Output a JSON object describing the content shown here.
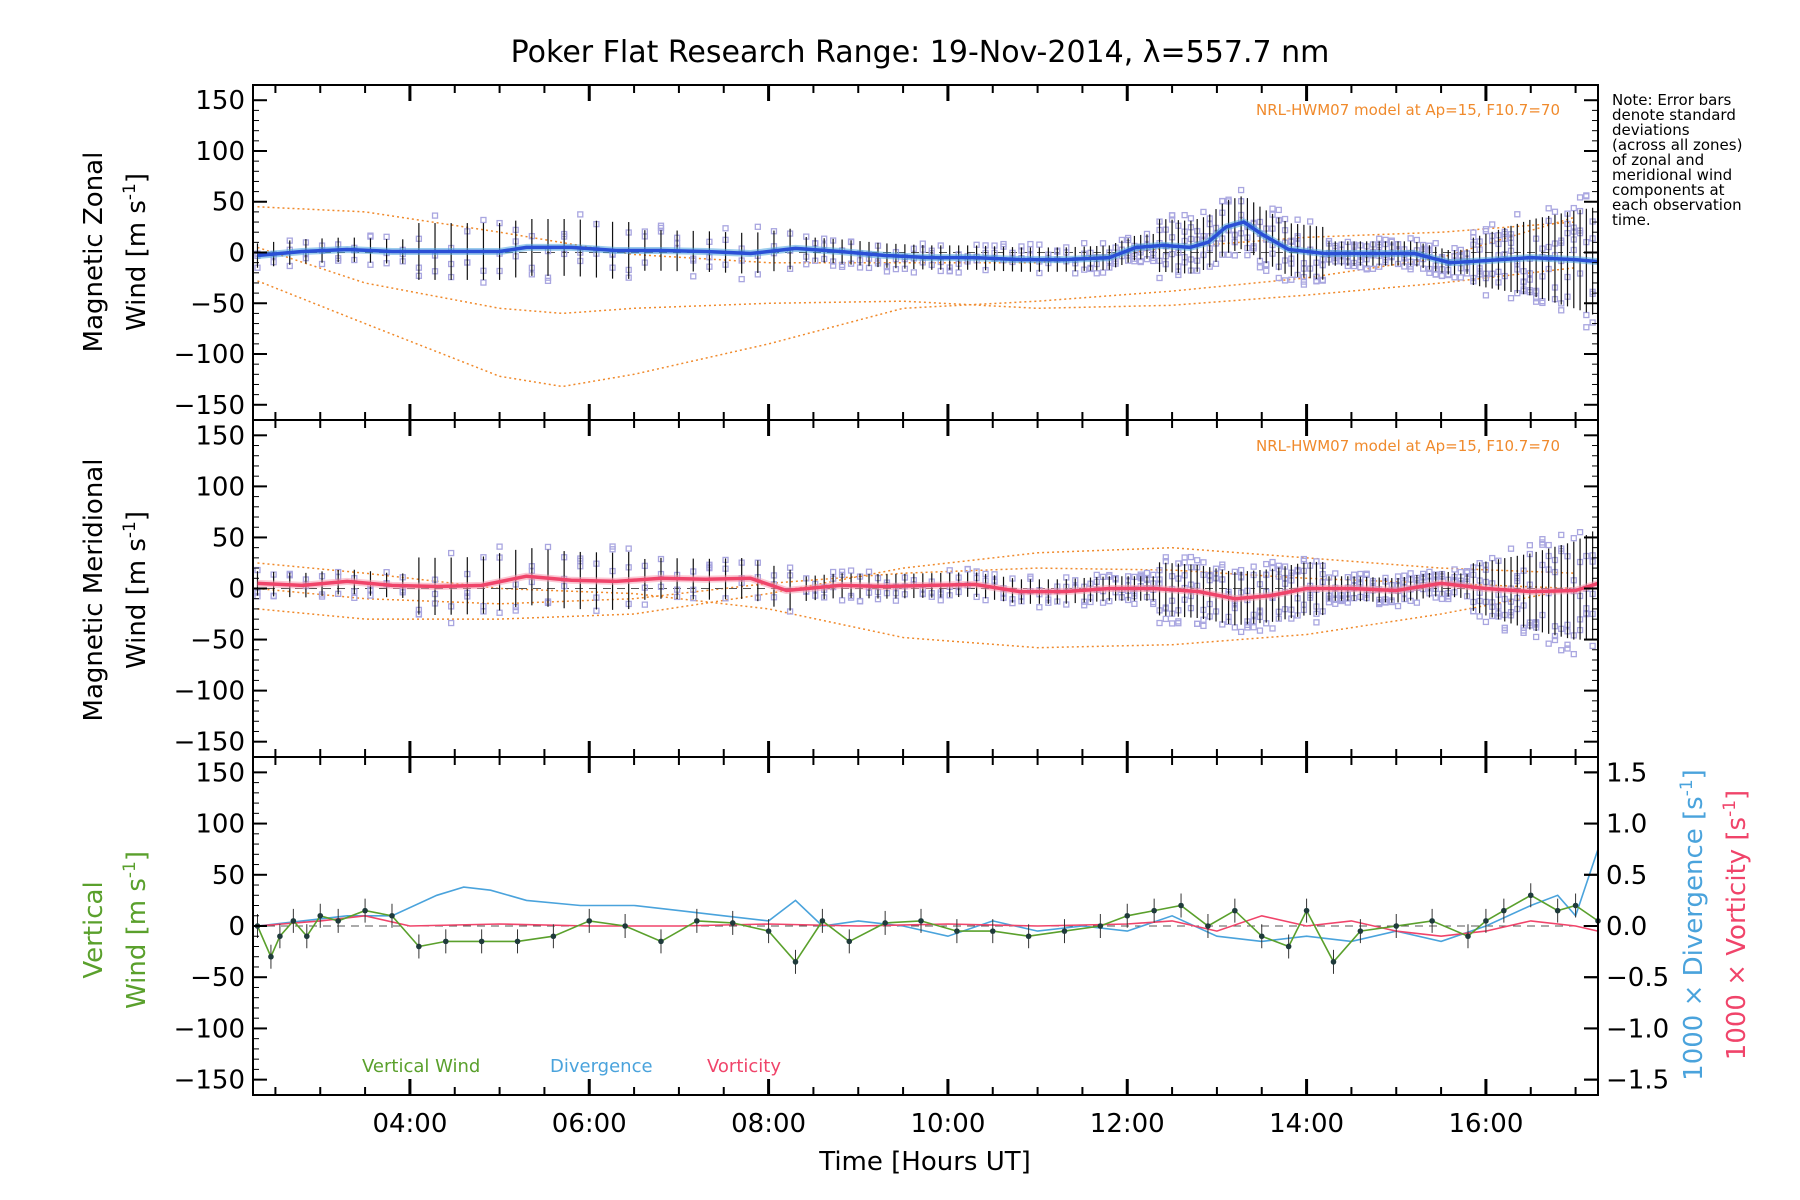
{
  "title": "Poker Flat Research Range: 19-Nov-2014, λ=557.7 nm",
  "note_lines": [
    "Note: Error bars",
    "denote standard",
    "deviations",
    "(across all zones)",
    "of zonal and",
    "meridional wind",
    "components at",
    "each observation",
    "time."
  ],
  "model_note": "NRL-HWM07 model at Ap=15, F10.7=70",
  "xlabel": "Time [Hours UT]",
  "x_ticks": [
    "04:00",
    "06:00",
    "08:00",
    "10:00",
    "12:00",
    "14:00",
    "16:00"
  ],
  "y_ticks": [
    "150",
    "100",
    "50",
    "0",
    "−50",
    "−100",
    "−150"
  ],
  "y2_ticks": [
    "1.5",
    "1.0",
    "0.5",
    "0.0",
    "−0.5",
    "−1.0",
    "−1.5"
  ],
  "panels": {
    "zonal": {
      "ylabel_1": "Magnetic Zonal",
      "ylabel_2": "Wind",
      "unit_pre": "[m s",
      "unit_exp": "-1",
      "unit_post": "]"
    },
    "meridional": {
      "ylabel_1": "Magnetic Meridional",
      "ylabel_2": "Wind",
      "unit_pre": "[m s",
      "unit_exp": "-1",
      "unit_post": "]"
    },
    "vertical": {
      "ylabel_1": "Vertical",
      "ylabel_2": "Wind",
      "unit_pre": "[m s",
      "unit_exp": "-1",
      "unit_post": "]",
      "y2label_div": "1000 × Divergence",
      "y2label_vor": "1000 × Vorticity",
      "y2_unit_pre": "[s",
      "y2_unit_exp": "-1",
      "y2_unit_post": "]"
    }
  },
  "legend": [
    "Vertical Wind",
    "Divergence",
    "Vorticity"
  ],
  "colors": {
    "zonal": "#2a4fd6",
    "zonal_light": "#4aa3dc",
    "meridional": "#f0446a",
    "vertical": "#5aa02c",
    "divergence": "#4aa3dc",
    "vorticity": "#f0446a",
    "model": "#f08a2c",
    "scatter": "#a9a6e0"
  },
  "chart_data": [
    {
      "type": "line",
      "name": "zonal",
      "xlim": [
        2.25,
        17.25
      ],
      "ylim": [
        -165,
        165
      ],
      "mean_wind": {
        "x": [
          2.3,
          2.8,
          3.3,
          3.8,
          4.5,
          5.0,
          5.3,
          5.8,
          6.3,
          6.8,
          7.3,
          7.8,
          8.3,
          8.8,
          9.3,
          9.8,
          10.3,
          10.8,
          11.3,
          11.8,
          12.1,
          12.4,
          12.7,
          12.9,
          13.1,
          13.3,
          13.5,
          13.8,
          14.2,
          14.8,
          15.2,
          15.6,
          16.0,
          16.5,
          17.0,
          17.25
        ],
        "y": [
          -3,
          1,
          3,
          1,
          1,
          1,
          5,
          5,
          2,
          2,
          1,
          -1,
          4,
          1,
          -3,
          -5,
          -5,
          -7,
          -7,
          -5,
          5,
          7,
          5,
          10,
          25,
          30,
          18,
          3,
          -1,
          -1,
          -1,
          -10,
          -8,
          -5,
          -7,
          -9
        ]
      },
      "model_curves": [
        {
          "x": [
            2.3,
            3.5,
            5.0,
            5.7,
            6.5,
            8.0,
            9.5,
            11.0,
            12.5,
            14.0,
            15.5,
            17.0
          ],
          "y": [
            -28,
            -70,
            -122,
            -132,
            -120,
            -90,
            -55,
            -48,
            -38,
            -25,
            -5,
            35
          ]
        },
        {
          "x": [
            2.3,
            3.5,
            5.0,
            6.5,
            8.0,
            9.5,
            11.0,
            12.5,
            14.0,
            15.5,
            17.0
          ],
          "y": [
            45,
            40,
            20,
            -2,
            -10,
            -10,
            -10,
            5,
            15,
            20,
            30
          ]
        },
        {
          "x": [
            2.3,
            3.5,
            5.0,
            5.7,
            6.5,
            8.0,
            9.5,
            11.0,
            12.5,
            14.0,
            15.5,
            17.0
          ],
          "y": [
            5,
            -30,
            -55,
            -60,
            -55,
            -50,
            -48,
            -55,
            -52,
            -42,
            -30,
            -15
          ]
        }
      ]
    },
    {
      "type": "line",
      "name": "meridional",
      "xlim": [
        2.25,
        17.25
      ],
      "ylim": [
        -165,
        165
      ],
      "mean_wind": {
        "x": [
          2.3,
          2.8,
          3.3,
          3.8,
          4.3,
          4.8,
          5.3,
          5.8,
          6.3,
          6.8,
          7.3,
          7.8,
          8.2,
          8.8,
          9.3,
          9.8,
          10.3,
          10.8,
          11.3,
          11.8,
          12.3,
          12.8,
          13.2,
          13.6,
          14.0,
          14.5,
          15.0,
          15.5,
          16.0,
          16.5,
          17.0,
          17.25
        ],
        "y": [
          5,
          3,
          7,
          3,
          2,
          3,
          12,
          8,
          7,
          10,
          9,
          10,
          -2,
          3,
          2,
          3,
          4,
          -3,
          -3,
          0,
          0,
          -3,
          -10,
          -7,
          0,
          0,
          -2,
          5,
          0,
          -3,
          -2,
          5
        ]
      },
      "model_curves": [
        {
          "x": [
            2.3,
            3.5,
            5.0,
            6.5,
            8.0,
            9.5,
            11.0,
            12.5,
            14.0,
            15.5,
            17.0
          ],
          "y": [
            25,
            15,
            0,
            -5,
            -20,
            -48,
            -58,
            -55,
            -45,
            -25,
            0
          ]
        },
        {
          "x": [
            2.3,
            3.5,
            5.0,
            6.5,
            8.0,
            9.5,
            11.0,
            12.5,
            14.0,
            15.5,
            17.0
          ],
          "y": [
            -20,
            -30,
            -30,
            -25,
            -5,
            20,
            35,
            40,
            30,
            20,
            15
          ]
        },
        {
          "x": [
            2.3,
            3.5,
            5.0,
            6.5,
            8.0,
            9.5,
            11.0,
            12.5,
            14.0,
            15.5,
            17.0
          ],
          "y": [
            0,
            -10,
            -15,
            -10,
            5,
            15,
            20,
            18,
            10,
            5,
            0
          ]
        }
      ]
    },
    {
      "type": "line",
      "name": "vertical",
      "xlim": [
        2.25,
        17.25
      ],
      "ylim": [
        -165,
        165
      ],
      "y2lim": [
        -1.65,
        1.65
      ],
      "series": [
        {
          "name": "Vertical Wind",
          "x": [
            2.3,
            2.45,
            2.55,
            2.7,
            2.85,
            3.0,
            3.2,
            3.5,
            3.8,
            4.1,
            4.4,
            4.8,
            5.2,
            5.6,
            6.0,
            6.4,
            6.8,
            7.2,
            7.6,
            8.0,
            8.3,
            8.6,
            8.9,
            9.3,
            9.7,
            10.1,
            10.5,
            10.9,
            11.3,
            11.7,
            12.0,
            12.3,
            12.6,
            12.9,
            13.2,
            13.5,
            13.8,
            14.0,
            14.3,
            14.6,
            15.0,
            15.4,
            15.8,
            16.0,
            16.2,
            16.5,
            16.8,
            17.0,
            17.25
          ],
          "y": [
            0,
            -30,
            -10,
            5,
            -10,
            10,
            5,
            15,
            10,
            -20,
            -15,
            -15,
            -15,
            -10,
            5,
            0,
            -15,
            5,
            3,
            -5,
            -35,
            5,
            -15,
            3,
            5,
            -5,
            -5,
            -10,
            -5,
            0,
            10,
            15,
            20,
            0,
            15,
            -10,
            -20,
            15,
            -35,
            -5,
            0,
            5,
            -10,
            5,
            15,
            30,
            15,
            20,
            5
          ]
        },
        {
          "name": "Divergence",
          "x": [
            2.3,
            2.8,
            3.3,
            3.8,
            4.3,
            4.6,
            4.9,
            5.3,
            5.9,
            6.5,
            7.0,
            7.5,
            8.0,
            8.3,
            8.6,
            9.0,
            9.5,
            10.0,
            10.5,
            11.0,
            11.5,
            12.0,
            12.5,
            13.0,
            13.5,
            14.0,
            14.5,
            15.0,
            15.5,
            16.0,
            16.5,
            16.8,
            17.0,
            17.25
          ],
          "y": [
            0.0,
            0.05,
            0.1,
            0.1,
            0.3,
            0.38,
            0.35,
            0.25,
            0.2,
            0.2,
            0.15,
            0.1,
            0.05,
            0.25,
            0.0,
            0.05,
            0.0,
            -0.1,
            0.05,
            -0.05,
            0.0,
            -0.05,
            0.1,
            -0.1,
            -0.15,
            -0.1,
            -0.15,
            -0.05,
            -0.15,
            0.0,
            0.2,
            0.3,
            0.1,
            0.75
          ]
        },
        {
          "name": "Vorticity",
          "x": [
            2.3,
            3.0,
            3.5,
            4.0,
            5.0,
            6.0,
            7.0,
            8.0,
            9.0,
            10.0,
            11.0,
            12.0,
            12.5,
            13.0,
            13.5,
            14.0,
            14.5,
            15.0,
            15.5,
            16.0,
            16.5,
            17.0,
            17.25
          ],
          "y": [
            0.0,
            0.05,
            0.1,
            0.0,
            0.02,
            0.0,
            0.0,
            0.02,
            0.0,
            0.02,
            0.0,
            0.02,
            0.05,
            -0.05,
            0.1,
            0.0,
            0.05,
            -0.05,
            -0.1,
            -0.05,
            0.05,
            0.0,
            -0.05
          ]
        }
      ]
    }
  ]
}
